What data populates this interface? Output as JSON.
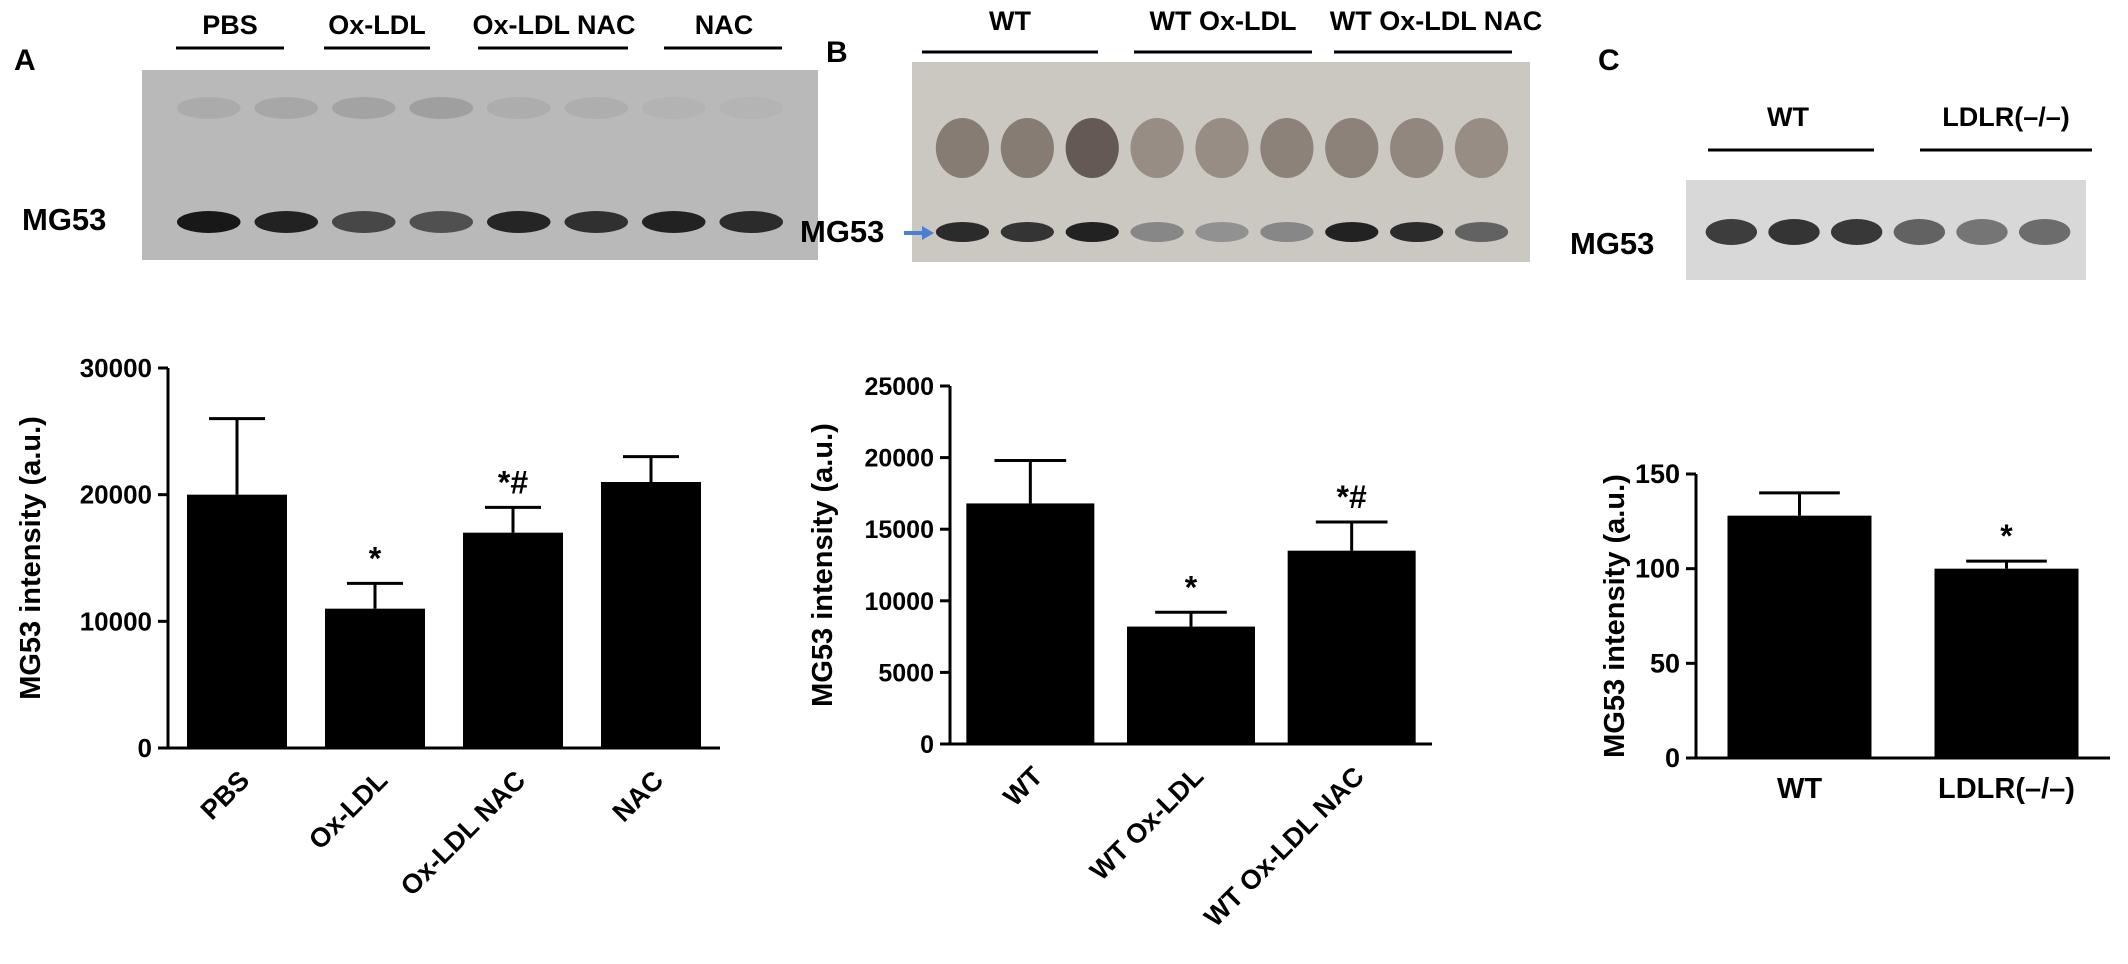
{
  "panels": [
    {
      "letter": "A",
      "blot": {
        "groups": [
          "PBS",
          "Ox-LDL",
          "Ox-LDL NAC",
          "NAC"
        ],
        "band_label": "MG53",
        "lanes": 8,
        "band_darkness": [
          0.95,
          0.9,
          0.7,
          0.65,
          0.88,
          0.82,
          0.9,
          0.85
        ],
        "upper_band_darkness": [
          0.25,
          0.3,
          0.35,
          0.4,
          0.22,
          0.2,
          0.15,
          0.12
        ],
        "background": "#b9b9b9",
        "arrow": false
      }
    },
    {
      "letter": "B",
      "blot": {
        "groups": [
          "WT",
          "WT Ox-LDL",
          "WT Ox-LDL NAC"
        ],
        "band_label": "MG53",
        "lanes": 9,
        "band_darkness": [
          0.85,
          0.8,
          0.9,
          0.35,
          0.3,
          0.35,
          0.9,
          0.85,
          0.55
        ],
        "upper_band_darkness": [
          0.6,
          0.6,
          0.9,
          0.45,
          0.45,
          0.55,
          0.55,
          0.5,
          0.45
        ],
        "background": "#cbc7c1",
        "arrow": true,
        "arrow_color": "#4a7fd1"
      }
    },
    {
      "letter": "C",
      "blot": {
        "groups": [
          "WT",
          "LDLR(–/–)"
        ],
        "band_label": "MG53",
        "lanes": 6,
        "band_darkness": [
          0.75,
          0.8,
          0.78,
          0.55,
          0.45,
          0.5
        ],
        "upper_band_darkness": [],
        "background": "#d8d8d8",
        "arrow": false
      }
    }
  ],
  "chart_data": [
    {
      "type": "bar",
      "categories": [
        "PBS",
        "Ox-LDL",
        "Ox-LDL NAC",
        "NAC"
      ],
      "values": [
        20000,
        11000,
        17000,
        21000
      ],
      "errors": [
        6000,
        2000,
        2000,
        2000
      ],
      "annotations": [
        "",
        "*",
        "*#",
        ""
      ],
      "ylabel": "MG53 intensity (a.u.)",
      "xlabel": "",
      "ylim": [
        0,
        30000
      ],
      "yticks": [
        0,
        10000,
        20000,
        30000
      ],
      "tick_labels": [
        "0",
        "10000",
        "20000",
        "30000"
      ],
      "bar_color": "#000000",
      "grid": false,
      "rotated_labels": true
    },
    {
      "type": "bar",
      "categories": [
        "WT",
        "WT Ox-LDL",
        "WT Ox-LDL NAC"
      ],
      "values": [
        16800,
        8200,
        13500
      ],
      "errors": [
        3000,
        1000,
        2000
      ],
      "annotations": [
        "",
        "*",
        "*#"
      ],
      "ylabel": "MG53 intensity (a.u.)",
      "xlabel": "",
      "ylim": [
        0,
        25000
      ],
      "yticks": [
        0,
        5000,
        10000,
        15000,
        20000,
        25000
      ],
      "tick_labels": [
        "0",
        "5000",
        "10000",
        "15000",
        "20000",
        "25000"
      ],
      "bar_color": "#000000",
      "grid": false,
      "rotated_labels": true
    },
    {
      "type": "bar",
      "categories": [
        "WT",
        "LDLR(–/–)"
      ],
      "values": [
        128,
        100
      ],
      "errors": [
        12,
        4
      ],
      "annotations": [
        "",
        "*"
      ],
      "ylabel": "MG53 intensity (a.u.)",
      "xlabel": "",
      "ylim": [
        0,
        150
      ],
      "yticks": [
        0,
        50,
        100,
        150
      ],
      "tick_labels": [
        "0",
        "50",
        "100",
        "150"
      ],
      "bar_color": "#000000",
      "grid": false,
      "rotated_labels": false
    }
  ]
}
